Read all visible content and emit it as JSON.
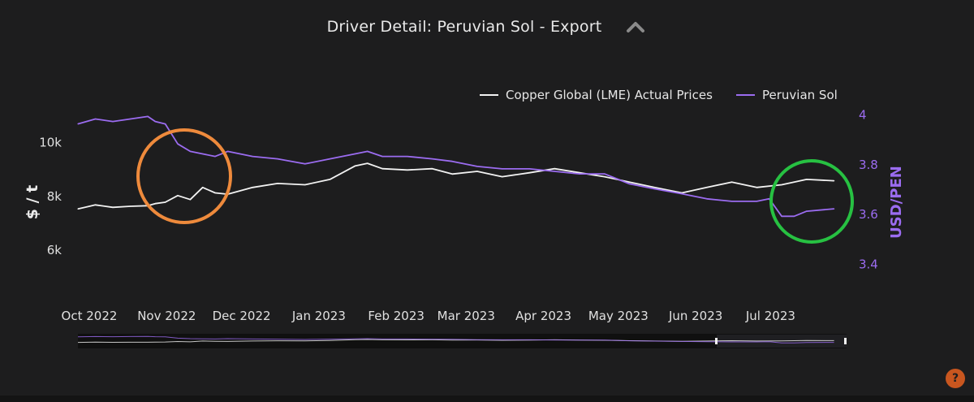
{
  "header": {
    "title": "Driver Detail: Peruvian Sol - Export"
  },
  "help": {
    "label": "?"
  },
  "chart_data": {
    "type": "line",
    "legend": {
      "placement": "top-right"
    },
    "xlim": [
      "2022-10-01",
      "2023-08-05"
    ],
    "x_ticks": [
      "Oct 2022",
      "Nov 2022",
      "Dec 2022",
      "Jan 2023",
      "Feb 2023",
      "Mar 2023",
      "Apr 2023",
      "May 2023",
      "Jun 2023",
      "Jul 2023"
    ],
    "y_left": {
      "label": "$ / t",
      "ticks": [
        "6k",
        "8k",
        "10k"
      ],
      "ylim": [
        5000,
        11500
      ]
    },
    "y_right": {
      "label": "USD/PEN",
      "ticks": [
        "3.4",
        "3.6",
        "3.8",
        "4"
      ],
      "ylim": [
        3.35,
        4.05
      ]
    },
    "colors": {
      "copper": "#f2f2f2",
      "sol": "#9b6cf0",
      "highlight_left": "#ee8a3c",
      "highlight_right": "#27c142"
    },
    "series": [
      {
        "name": "Copper Global (LME) Actual Prices",
        "axis": "left",
        "x": [
          "2022-10-01",
          "2022-10-08",
          "2022-10-15",
          "2022-10-22",
          "2022-10-29",
          "2022-11-01",
          "2022-11-05",
          "2022-11-10",
          "2022-11-15",
          "2022-11-20",
          "2022-11-25",
          "2022-11-30",
          "2022-12-10",
          "2022-12-20",
          "2022-12-31",
          "2023-01-10",
          "2023-01-20",
          "2023-01-25",
          "2023-01-31",
          "2023-02-10",
          "2023-02-20",
          "2023-02-28",
          "2023-03-10",
          "2023-03-20",
          "2023-03-31",
          "2023-04-10",
          "2023-04-20",
          "2023-04-30",
          "2023-05-10",
          "2023-05-20",
          "2023-05-31",
          "2023-06-10",
          "2023-06-20",
          "2023-06-30",
          "2023-07-10",
          "2023-07-20",
          "2023-07-31"
        ],
        "values": [
          7500,
          7650,
          7560,
          7600,
          7620,
          7700,
          7750,
          8000,
          7850,
          8300,
          8100,
          8050,
          8300,
          8450,
          8400,
          8600,
          9100,
          9200,
          9000,
          8950,
          9000,
          8800,
          8900,
          8700,
          8850,
          9000,
          8850,
          8700,
          8500,
          8300,
          8100,
          8300,
          8500,
          8300,
          8400,
          8600,
          8550
        ]
      },
      {
        "name": "Peruvian Sol",
        "axis": "right",
        "x": [
          "2022-10-01",
          "2022-10-08",
          "2022-10-15",
          "2022-10-22",
          "2022-10-29",
          "2022-11-01",
          "2022-11-05",
          "2022-11-10",
          "2022-11-15",
          "2022-11-20",
          "2022-11-25",
          "2022-11-30",
          "2022-12-10",
          "2022-12-20",
          "2022-12-31",
          "2023-01-10",
          "2023-01-20",
          "2023-01-25",
          "2023-01-31",
          "2023-02-10",
          "2023-02-20",
          "2023-02-28",
          "2023-03-10",
          "2023-03-20",
          "2023-03-31",
          "2023-04-10",
          "2023-04-20",
          "2023-04-30",
          "2023-05-10",
          "2023-05-20",
          "2023-05-31",
          "2023-06-10",
          "2023-06-20",
          "2023-06-30",
          "2023-07-05",
          "2023-07-10",
          "2023-07-15",
          "2023-07-20",
          "2023-07-31"
        ],
        "values": [
          3.96,
          3.98,
          3.97,
          3.98,
          3.99,
          3.97,
          3.96,
          3.88,
          3.85,
          3.84,
          3.83,
          3.85,
          3.83,
          3.82,
          3.8,
          3.82,
          3.84,
          3.85,
          3.83,
          3.83,
          3.82,
          3.81,
          3.79,
          3.78,
          3.78,
          3.77,
          3.76,
          3.76,
          3.72,
          3.7,
          3.68,
          3.66,
          3.65,
          3.65,
          3.66,
          3.59,
          3.59,
          3.61,
          3.62
        ]
      }
    ]
  }
}
